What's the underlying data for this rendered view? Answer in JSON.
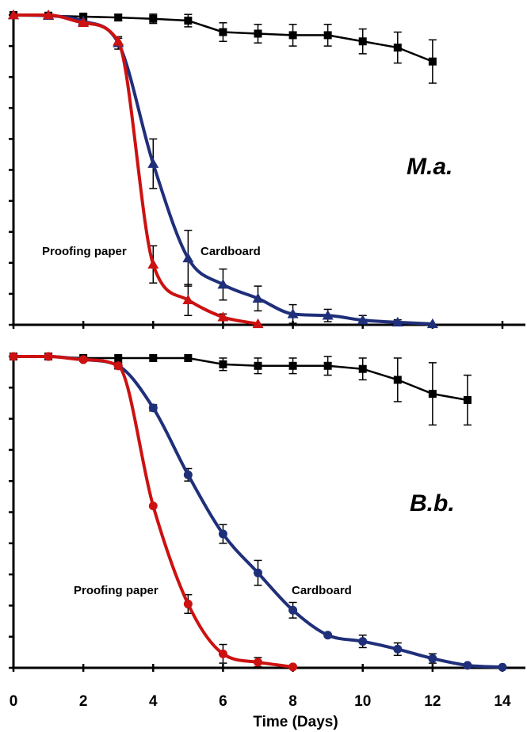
{
  "chart_data": [
    {
      "type": "line",
      "panel_label": "M.a.",
      "xlim": [
        0,
        14
      ],
      "ylim": [
        0,
        100
      ],
      "marker": "triangle",
      "annotations": [
        "Proofing paper",
        "Cardboard"
      ],
      "series": [
        {
          "color": "#000000",
          "marker": "square",
          "x": [
            0,
            1,
            2,
            3,
            4,
            5,
            6,
            7,
            8,
            9,
            10,
            11,
            12
          ],
          "y": [
            100,
            99.8,
            99.5,
            99.2,
            98.8,
            98.2,
            94.5,
            94,
            93.5,
            93.5,
            91.5,
            89.5,
            85
          ],
          "err": [
            0.5,
            0.5,
            0.8,
            1,
            1.5,
            2,
            3,
            3,
            3.5,
            3.5,
            4,
            5,
            7
          ]
        },
        {
          "color": "#1f2f7a",
          "marker": "triangle",
          "x": [
            0,
            1,
            2,
            3,
            4,
            5,
            6,
            7,
            8,
            9,
            10,
            11,
            12
          ],
          "y": [
            100,
            99.8,
            98,
            91,
            52,
            21.5,
            13,
            8.5,
            3.5,
            3,
            1.5,
            0.8,
            0.3
          ],
          "err": [
            0,
            0,
            0.5,
            2,
            8,
            9,
            5,
            4,
            3,
            2,
            1.5,
            0.8,
            0.3
          ]
        },
        {
          "color": "#cc1111",
          "marker": "triangle",
          "x": [
            0,
            1,
            2,
            3,
            4,
            5,
            6,
            7
          ],
          "y": [
            100,
            100,
            97.5,
            91.5,
            19.5,
            8,
            2.5,
            0.3
          ],
          "err": [
            0,
            0,
            0.5,
            1,
            6,
            5,
            1,
            0.3
          ]
        }
      ]
    },
    {
      "type": "line",
      "panel_label": "B.b.",
      "xlabel": "Time (Days)",
      "xticks": [
        0,
        2,
        4,
        6,
        8,
        10,
        12,
        14
      ],
      "xlim": [
        0,
        14
      ],
      "ylim": [
        0,
        100
      ],
      "annotations": [
        "Proofing paper",
        "Cardboard"
      ],
      "series": [
        {
          "color": "#000000",
          "marker": "square",
          "x": [
            0,
            1,
            2,
            3,
            4,
            5,
            6,
            7,
            8,
            9,
            10,
            11,
            12,
            13
          ],
          "y": [
            100,
            100,
            99.5,
            99.5,
            99.5,
            99.5,
            97.5,
            97,
            97,
            97,
            96,
            92.5,
            88,
            86
          ],
          "err": [
            0.5,
            0.5,
            0.5,
            0.5,
            0.5,
            0.5,
            2,
            2.5,
            2.5,
            3,
            3.5,
            7,
            10,
            8
          ]
        },
        {
          "color": "#1f2f7a",
          "marker": "circle",
          "x": [
            0,
            1,
            2,
            3,
            4,
            5,
            6,
            7,
            8,
            9,
            10,
            11,
            12,
            13,
            14
          ],
          "y": [
            100,
            100,
            99,
            97,
            83.5,
            62,
            43,
            30.5,
            18.5,
            10.5,
            8.5,
            6,
            3,
            0.8,
            0.2
          ],
          "err": [
            0,
            0,
            0.5,
            1,
            1,
            2,
            3,
            4,
            2.5,
            0.5,
            2,
            2,
            1.5,
            0.5,
            0.2
          ]
        },
        {
          "color": "#cc1111",
          "marker": "circle",
          "x": [
            0,
            1,
            2,
            3,
            4,
            5,
            6,
            7,
            8
          ],
          "y": [
            100,
            100,
            99,
            97,
            52,
            20.5,
            4.5,
            1.8,
            0.3
          ],
          "err": [
            0,
            0,
            0.5,
            1,
            0.5,
            3,
            3,
            1.5,
            0.3
          ]
        }
      ]
    }
  ]
}
